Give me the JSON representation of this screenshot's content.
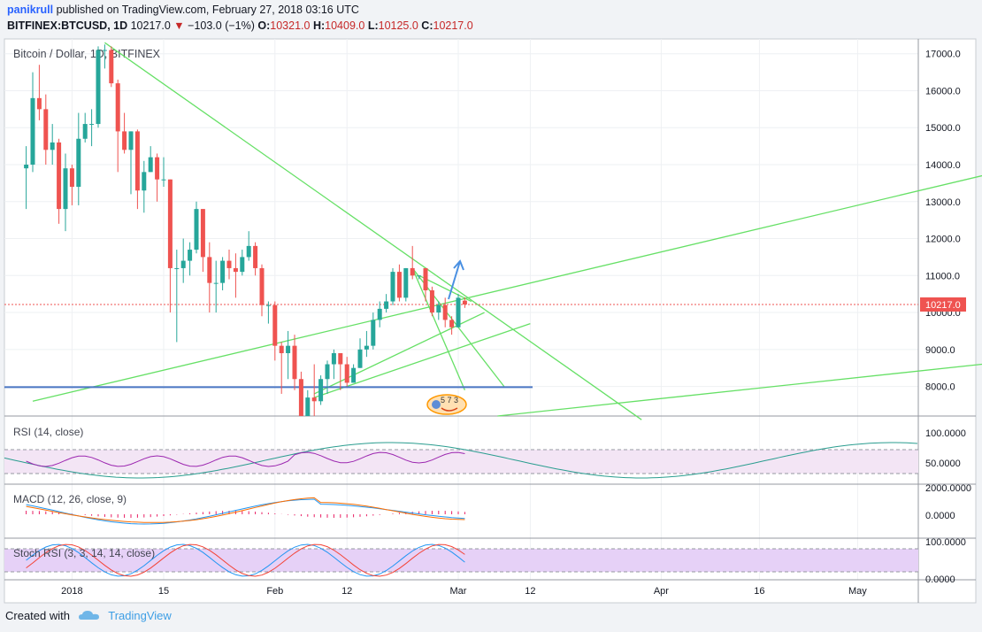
{
  "header": {
    "author": "panikrull",
    "published_text": "published on TradingView.com, February 27, 2018 03:16 UTC",
    "symbol": "BITFINEX:BTCUSD, 1D",
    "last": "10217.0",
    "change": "−103.0 (−1%)",
    "o_label": "O:",
    "o_value": "10321.0",
    "h_label": "H:",
    "h_value": "10409.0",
    "l_label": "L:",
    "l_value": "10125.0",
    "c_label": "C:",
    "c_value": "10217.0"
  },
  "footer": {
    "created_with": "Created with",
    "brand": "TradingView"
  },
  "colors": {
    "up": "#26a69a",
    "down": "#ef5350",
    "trend": "#66e066",
    "support": "#4a76c4",
    "rsi": "#9c27b0",
    "rsi_wave": "#2a9d8f",
    "macd": "#2196f3",
    "signal": "#ff6d00",
    "stoch_k": "#2196f3",
    "stoch_d": "#f44336",
    "price_label_bg": "#ef5350",
    "icon": "smile-badge-icon"
  },
  "chart_data": {
    "type": "candlestick",
    "title": "Bitcoin / Dollar, 1D, BITFINEX",
    "ylim": [
      7200,
      17400
    ],
    "y_ticks": [
      "17000.0",
      "16000.0",
      "15000.0",
      "14000.0",
      "13000.0",
      "12000.0",
      "11000.0",
      "10000.0",
      "9000.0",
      "8000.0"
    ],
    "x_ticks": [
      "2018",
      "15",
      "Feb",
      "12",
      "Mar",
      "12",
      "Apr",
      "16",
      "May"
    ],
    "last_price_label": "10217.0",
    "candles": [
      {
        "date": "2017-12-25",
        "o": 13900,
        "h": 14500,
        "l": 12800,
        "c": 14000
      },
      {
        "date": "2017-12-26",
        "o": 14000,
        "h": 16500,
        "l": 13800,
        "c": 15800
      },
      {
        "date": "2017-12-27",
        "o": 15800,
        "h": 16700,
        "l": 15200,
        "c": 15500
      },
      {
        "date": "2017-12-28",
        "o": 15500,
        "h": 15900,
        "l": 14000,
        "c": 14400
      },
      {
        "date": "2017-12-29",
        "o": 14400,
        "h": 15100,
        "l": 14000,
        "c": 14600
      },
      {
        "date": "2017-12-30",
        "o": 14600,
        "h": 14700,
        "l": 12400,
        "c": 12800
      },
      {
        "date": "2017-12-31",
        "o": 12800,
        "h": 14300,
        "l": 12200,
        "c": 13900
      },
      {
        "date": "2018-01-01",
        "o": 13900,
        "h": 14000,
        "l": 12900,
        "c": 13400
      },
      {
        "date": "2018-01-02",
        "o": 13400,
        "h": 15400,
        "l": 12900,
        "c": 14700
      },
      {
        "date": "2018-01-03",
        "o": 14700,
        "h": 15400,
        "l": 14600,
        "c": 15100
      },
      {
        "date": "2018-01-04",
        "o": 15100,
        "h": 15500,
        "l": 14500,
        "c": 15100
      },
      {
        "date": "2018-01-05",
        "o": 15100,
        "h": 17200,
        "l": 15000,
        "c": 17100
      },
      {
        "date": "2018-01-06",
        "o": 17100,
        "h": 17250,
        "l": 16600,
        "c": 17100
      },
      {
        "date": "2018-01-07",
        "o": 17100,
        "h": 17200,
        "l": 16100,
        "c": 16200
      },
      {
        "date": "2018-01-08",
        "o": 16200,
        "h": 16300,
        "l": 13800,
        "c": 14900
      },
      {
        "date": "2018-01-09",
        "o": 14900,
        "h": 15400,
        "l": 14300,
        "c": 14400
      },
      {
        "date": "2018-01-10",
        "o": 14400,
        "h": 14900,
        "l": 13200,
        "c": 14900
      },
      {
        "date": "2018-01-11",
        "o": 14900,
        "h": 14950,
        "l": 12800,
        "c": 13300
      },
      {
        "date": "2018-01-12",
        "o": 13300,
        "h": 14100,
        "l": 12700,
        "c": 13800
      },
      {
        "date": "2018-01-13",
        "o": 13800,
        "h": 14500,
        "l": 13800,
        "c": 14200
      },
      {
        "date": "2018-01-14",
        "o": 14200,
        "h": 14300,
        "l": 13000,
        "c": 13600
      },
      {
        "date": "2018-01-15",
        "o": 13600,
        "h": 14200,
        "l": 13400,
        "c": 13600
      },
      {
        "date": "2018-01-16",
        "o": 13600,
        "h": 13600,
        "l": 10000,
        "c": 11200
      },
      {
        "date": "2018-01-17",
        "o": 11200,
        "h": 11700,
        "l": 9200,
        "c": 11200
      },
      {
        "date": "2018-01-18",
        "o": 11200,
        "h": 12000,
        "l": 10800,
        "c": 11400
      },
      {
        "date": "2018-01-19",
        "o": 11400,
        "h": 11900,
        "l": 11000,
        "c": 11700
      },
      {
        "date": "2018-01-20",
        "o": 11700,
        "h": 13000,
        "l": 11600,
        "c": 12800
      },
      {
        "date": "2018-01-21",
        "o": 12800,
        "h": 12800,
        "l": 11100,
        "c": 11500
      },
      {
        "date": "2018-01-22",
        "o": 11500,
        "h": 11900,
        "l": 10000,
        "c": 10800
      },
      {
        "date": "2018-01-23",
        "o": 10800,
        "h": 11400,
        "l": 10000,
        "c": 10800
      },
      {
        "date": "2018-01-24",
        "o": 10800,
        "h": 11500,
        "l": 10600,
        "c": 11400
      },
      {
        "date": "2018-01-25",
        "o": 11400,
        "h": 11700,
        "l": 10900,
        "c": 11200
      },
      {
        "date": "2018-01-26",
        "o": 11200,
        "h": 11600,
        "l": 10400,
        "c": 11100
      },
      {
        "date": "2018-01-27",
        "o": 11100,
        "h": 11700,
        "l": 11000,
        "c": 11500
      },
      {
        "date": "2018-01-28",
        "o": 11500,
        "h": 12200,
        "l": 11400,
        "c": 11800
      },
      {
        "date": "2018-01-29",
        "o": 11800,
        "h": 11900,
        "l": 11000,
        "c": 11200
      },
      {
        "date": "2018-01-30",
        "o": 11200,
        "h": 11300,
        "l": 9900,
        "c": 10200
      },
      {
        "date": "2018-01-31",
        "o": 10200,
        "h": 10300,
        "l": 9700,
        "c": 10200
      },
      {
        "date": "2018-02-01",
        "o": 10200,
        "h": 10300,
        "l": 8700,
        "c": 9100
      },
      {
        "date": "2018-02-02",
        "o": 9100,
        "h": 9200,
        "l": 7800,
        "c": 8900
      },
      {
        "date": "2018-02-03",
        "o": 8900,
        "h": 9500,
        "l": 8200,
        "c": 9100
      },
      {
        "date": "2018-02-04",
        "o": 9100,
        "h": 9400,
        "l": 7900,
        "c": 8200
      },
      {
        "date": "2018-02-05",
        "o": 8200,
        "h": 8400,
        "l": 6600,
        "c": 6900
      },
      {
        "date": "2018-02-06",
        "o": 6900,
        "h": 7900,
        "l": 6000,
        "c": 7700
      },
      {
        "date": "2018-02-07",
        "o": 7700,
        "h": 8600,
        "l": 7200,
        "c": 7600
      },
      {
        "date": "2018-02-08",
        "o": 7600,
        "h": 8300,
        "l": 7500,
        "c": 8200
      },
      {
        "date": "2018-02-09",
        "o": 8200,
        "h": 8700,
        "l": 7800,
        "c": 8600
      },
      {
        "date": "2018-02-10",
        "o": 8600,
        "h": 9000,
        "l": 8200,
        "c": 8900
      },
      {
        "date": "2018-02-11",
        "o": 8900,
        "h": 8900,
        "l": 7900,
        "c": 8600
      },
      {
        "date": "2018-02-12",
        "o": 8600,
        "h": 8800,
        "l": 8000,
        "c": 8100
      },
      {
        "date": "2018-02-13",
        "o": 8100,
        "h": 8600,
        "l": 8100,
        "c": 8500
      },
      {
        "date": "2018-02-14",
        "o": 8500,
        "h": 9300,
        "l": 8500,
        "c": 9000
      },
      {
        "date": "2018-02-15",
        "o": 9000,
        "h": 9500,
        "l": 8800,
        "c": 9100
      },
      {
        "date": "2018-02-16",
        "o": 9100,
        "h": 10000,
        "l": 9000,
        "c": 9800
      },
      {
        "date": "2018-02-17",
        "o": 9800,
        "h": 10300,
        "l": 9600,
        "c": 10100
      },
      {
        "date": "2018-02-18",
        "o": 10100,
        "h": 10500,
        "l": 10000,
        "c": 10300
      },
      {
        "date": "2018-02-19",
        "o": 10300,
        "h": 11200,
        "l": 10200,
        "c": 11100
      },
      {
        "date": "2018-02-20",
        "o": 11100,
        "h": 11300,
        "l": 10300,
        "c": 10400
      },
      {
        "date": "2018-02-21",
        "o": 10400,
        "h": 11200,
        "l": 10300,
        "c": 11200
      },
      {
        "date": "2018-02-22",
        "o": 11200,
        "h": 11800,
        "l": 10900,
        "c": 11000
      },
      {
        "date": "2018-02-23",
        "o": 11000,
        "h": 11000,
        "l": 10900,
        "c": 11000
      },
      {
        "date": "2018-02-24",
        "o": 11200,
        "h": 11200,
        "l": 10300,
        "c": 10600
      },
      {
        "date": "2018-02-25",
        "o": 10600,
        "h": 10700,
        "l": 9900,
        "c": 10000
      },
      {
        "date": "2018-02-26",
        "o": 10000,
        "h": 10300,
        "l": 9800,
        "c": 10200
      },
      {
        "date": "2018-02-27",
        "o": 10200,
        "h": 10400,
        "l": 9600,
        "c": 9800
      },
      {
        "date": "2018-02-28",
        "o": 9800,
        "h": 9900,
        "l": 9400,
        "c": 9600
      },
      {
        "date": "2018-03-01",
        "o": 9600,
        "h": 10500,
        "l": 9600,
        "c": 10400
      },
      {
        "date": "2018-03-02",
        "o": 10321,
        "h": 10409,
        "l": 10125,
        "c": 10217
      }
    ],
    "indicators": [
      {
        "label": "RSI (14, close)",
        "ticks": [
          "100.0000",
          "50.0000"
        ]
      },
      {
        "label": "MACD (12, 26, close, 9)",
        "ticks": [
          "2000.0000",
          "0.0000"
        ]
      },
      {
        "label": "Stoch RSI (3, 3, 14, 14, close)",
        "ticks": [
          "100.0000",
          "0.0000"
        ]
      }
    ]
  }
}
